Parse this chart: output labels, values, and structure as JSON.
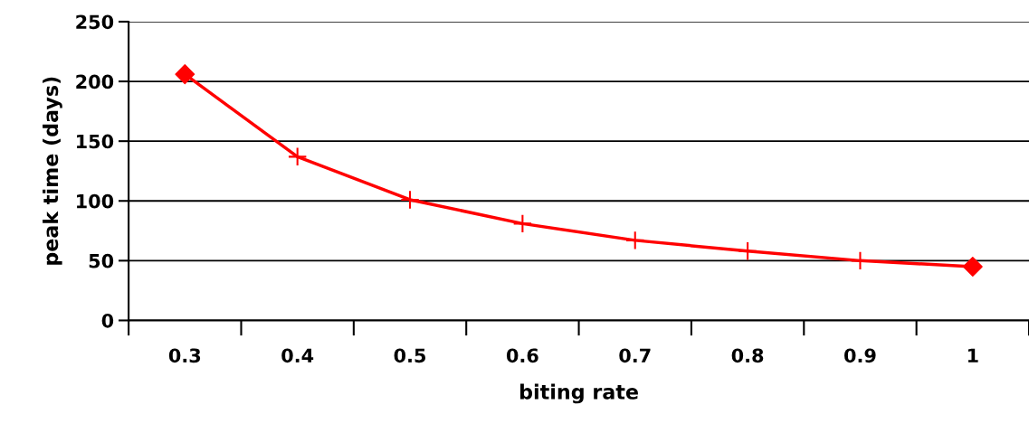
{
  "chart_data": {
    "type": "line",
    "xlabel": "biting rate",
    "ylabel": "peak time (days)",
    "categories": [
      "0.3",
      "0.4",
      "0.5",
      "0.6",
      "0.7",
      "0.8",
      "0.9",
      "1"
    ],
    "series": [
      {
        "color": "#ff0000",
        "values": [
          206,
          137,
          101,
          81,
          67,
          58,
          50,
          45
        ],
        "marker": "cross"
      },
      {
        "type": "scatter",
        "color": "#ff0000",
        "x": [
          "0.3",
          "1"
        ],
        "values": [
          206,
          45
        ],
        "marker": "diamond"
      }
    ],
    "ylim": [
      0,
      250
    ],
    "yticks": [
      0,
      50,
      100,
      150,
      200,
      250
    ],
    "grid": "y",
    "legend": false
  }
}
